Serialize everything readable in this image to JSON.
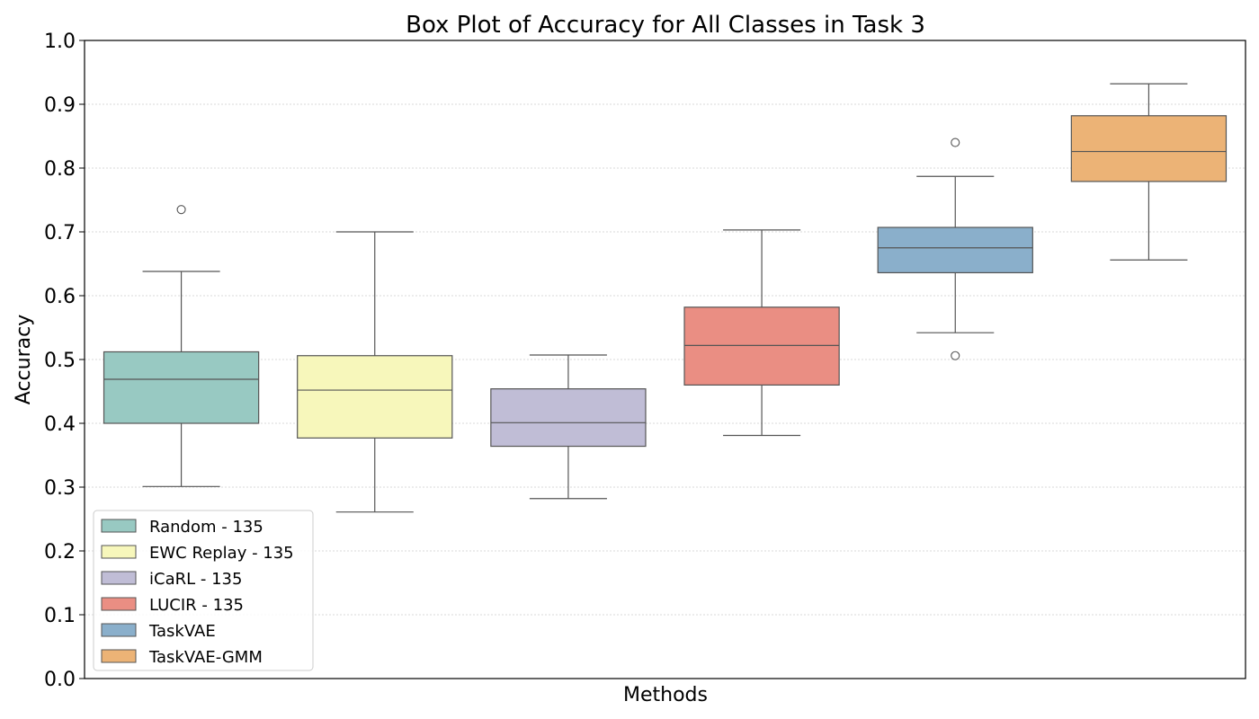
{
  "chart_data": {
    "type": "box",
    "title": "Box Plot of Accuracy for All Classes in Task 3",
    "xlabel": "Methods",
    "ylabel": "Accuracy",
    "ylim": [
      0.0,
      1.0
    ],
    "yticks": [
      "0.0",
      "0.1",
      "0.2",
      "0.3",
      "0.4",
      "0.5",
      "0.6",
      "0.7",
      "0.8",
      "0.9",
      "1.0"
    ],
    "grid": "horizontal dotted",
    "legend_position": "lower-left",
    "series": [
      {
        "name": "Random - 135",
        "color": "#98c9c2",
        "whisker_low": 0.301,
        "q1": 0.4,
        "median": 0.469,
        "q3": 0.512,
        "whisker_high": 0.638,
        "outliers": [
          0.735
        ]
      },
      {
        "name": "EWC Replay - 135",
        "color": "#f7f7bb",
        "whisker_low": 0.261,
        "q1": 0.377,
        "median": 0.452,
        "q3": 0.506,
        "whisker_high": 0.7,
        "outliers": []
      },
      {
        "name": "iCaRL - 135",
        "color": "#c0bdd6",
        "whisker_low": 0.282,
        "q1": 0.364,
        "median": 0.401,
        "q3": 0.454,
        "whisker_high": 0.507,
        "outliers": []
      },
      {
        "name": "LUCIR - 135",
        "color": "#ea8e83",
        "whisker_low": 0.381,
        "q1": 0.46,
        "median": 0.522,
        "q3": 0.582,
        "whisker_high": 0.703,
        "outliers": []
      },
      {
        "name": "TaskVAE",
        "color": "#8aafcb",
        "whisker_low": 0.542,
        "q1": 0.636,
        "median": 0.675,
        "q3": 0.707,
        "whisker_high": 0.787,
        "outliers": [
          0.84,
          0.506
        ]
      },
      {
        "name": "TaskVAE-GMM",
        "color": "#ecb376",
        "whisker_low": 0.656,
        "q1": 0.779,
        "median": 0.826,
        "q3": 0.882,
        "whisker_high": 0.932,
        "outliers": []
      }
    ]
  }
}
